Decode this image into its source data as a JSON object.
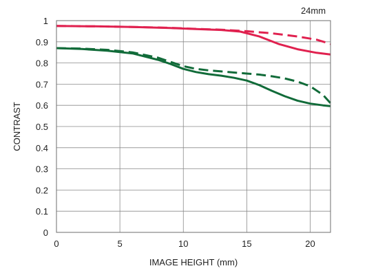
{
  "chart_data": {
    "type": "line",
    "title": "",
    "annotation": "24mm",
    "xlabel": "IMAGE HEIGHT (mm)",
    "ylabel": "CONTRAST",
    "xlim": [
      0,
      21.6
    ],
    "ylim": [
      0,
      1
    ],
    "x_ticks": [
      0,
      5,
      10,
      15,
      20
    ],
    "x_tick_labels": [
      "0",
      "5",
      "10",
      "15",
      "20"
    ],
    "y_ticks": [
      0,
      0.1,
      0.2,
      0.3,
      0.4,
      0.5,
      0.6,
      0.7,
      0.8,
      0.9,
      1
    ],
    "y_tick_labels": [
      "0",
      "0.1",
      "0.2",
      "0.3",
      "0.4",
      "0.5",
      "0.6",
      "0.7",
      "0.8",
      "0.9",
      "1"
    ],
    "grid": true,
    "legend": "none",
    "series": [
      {
        "color": "#e0214f",
        "dash": "solid",
        "points": [
          [
            0,
            0.975
          ],
          [
            3,
            0.973
          ],
          [
            6,
            0.97
          ],
          [
            9,
            0.965
          ],
          [
            11,
            0.96
          ],
          [
            13,
            0.956
          ],
          [
            14.5,
            0.948
          ],
          [
            16,
            0.925
          ],
          [
            17.5,
            0.89
          ],
          [
            19,
            0.865
          ],
          [
            20.5,
            0.848
          ],
          [
            21.6,
            0.84
          ]
        ]
      },
      {
        "color": "#e0214f",
        "dash": "dashed",
        "points": [
          [
            0,
            0.975
          ],
          [
            3,
            0.973
          ],
          [
            6,
            0.97
          ],
          [
            9,
            0.966
          ],
          [
            11,
            0.961
          ],
          [
            13,
            0.957
          ],
          [
            15,
            0.95
          ],
          [
            17,
            0.94
          ],
          [
            19,
            0.925
          ],
          [
            20.5,
            0.91
          ],
          [
            21.6,
            0.89
          ]
        ]
      },
      {
        "color": "#116b39",
        "dash": "solid",
        "points": [
          [
            0,
            0.87
          ],
          [
            2,
            0.866
          ],
          [
            4,
            0.858
          ],
          [
            6,
            0.845
          ],
          [
            8,
            0.815
          ],
          [
            9,
            0.795
          ],
          [
            10,
            0.772
          ],
          [
            11,
            0.757
          ],
          [
            12,
            0.747
          ],
          [
            13,
            0.74
          ],
          [
            14,
            0.73
          ],
          [
            15,
            0.717
          ],
          [
            16,
            0.695
          ],
          [
            17,
            0.668
          ],
          [
            18,
            0.643
          ],
          [
            19,
            0.622
          ],
          [
            20,
            0.608
          ],
          [
            21,
            0.6
          ],
          [
            21.6,
            0.596
          ]
        ]
      },
      {
        "color": "#116b39",
        "dash": "dashed",
        "points": [
          [
            0,
            0.87
          ],
          [
            2,
            0.868
          ],
          [
            4,
            0.862
          ],
          [
            6,
            0.85
          ],
          [
            8,
            0.825
          ],
          [
            9,
            0.805
          ],
          [
            10,
            0.785
          ],
          [
            11,
            0.772
          ],
          [
            12,
            0.765
          ],
          [
            13,
            0.76
          ],
          [
            14,
            0.755
          ],
          [
            15,
            0.75
          ],
          [
            16,
            0.745
          ],
          [
            17,
            0.737
          ],
          [
            18,
            0.727
          ],
          [
            19,
            0.712
          ],
          [
            20,
            0.69
          ],
          [
            21,
            0.65
          ],
          [
            21.6,
            0.61
          ]
        ]
      }
    ]
  }
}
